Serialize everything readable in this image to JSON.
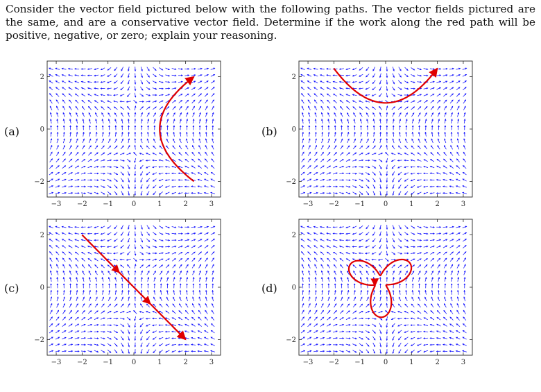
{
  "question": {
    "text": "Consider the vector field pictured below with the following paths. The vector fields pictured are the same, and are a conservative vector field. Determine if the work along the red path will be positive, negative, or zero; explain your reasoning."
  },
  "axes": {
    "x_ticks": [
      "−3",
      "−2",
      "−1",
      "0",
      "1",
      "2",
      "3"
    ],
    "y_ticks": [
      "2",
      "0",
      "−2"
    ],
    "xlim": [
      -3.35,
      3.35
    ],
    "ylim": [
      -2.6,
      2.6
    ]
  },
  "colors": {
    "arrows": "#1a1aff",
    "path": "#e00000",
    "frame": "#222222"
  },
  "panels": [
    {
      "label": "(a)"
    },
    {
      "label": "(b)"
    },
    {
      "label": "(c)"
    },
    {
      "label": "(d)"
    }
  ]
}
